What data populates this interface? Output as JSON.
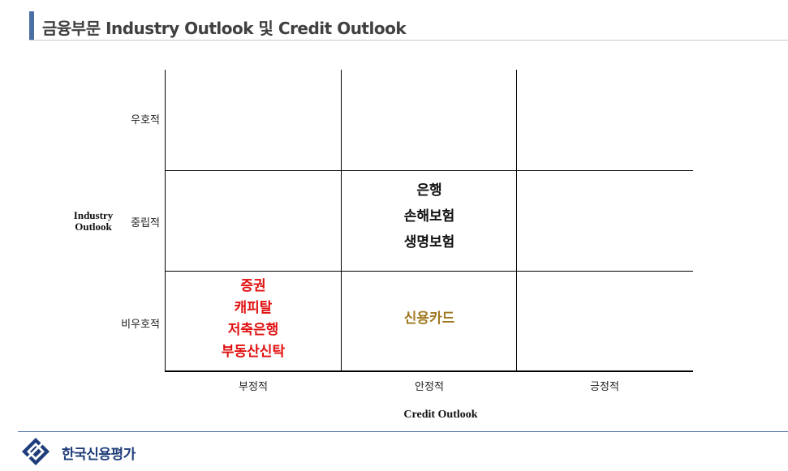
{
  "header": {
    "title": "금융부문 Industry Outlook 및 Credit Outlook"
  },
  "matrix": {
    "y_axis": {
      "title": "Industry Outlook",
      "rows": [
        "우호적",
        "중립적",
        "비우호적"
      ]
    },
    "x_axis": {
      "title": "Credit Outlook",
      "cols": [
        "부정적",
        "안정적",
        "긍정적"
      ]
    },
    "cells": {
      "neutral_stable": [
        "은행",
        "손해보험",
        "생명보험"
      ],
      "unfavorable_negative": [
        "증권",
        "캐피탈",
        "저축은행",
        "부동산신탁"
      ],
      "unfavorable_stable": [
        "신용카드"
      ]
    },
    "colors": {
      "black": "#111111",
      "red": "#e01010",
      "gold": "#a07820"
    }
  },
  "footer": {
    "company": "한국신용평가"
  }
}
